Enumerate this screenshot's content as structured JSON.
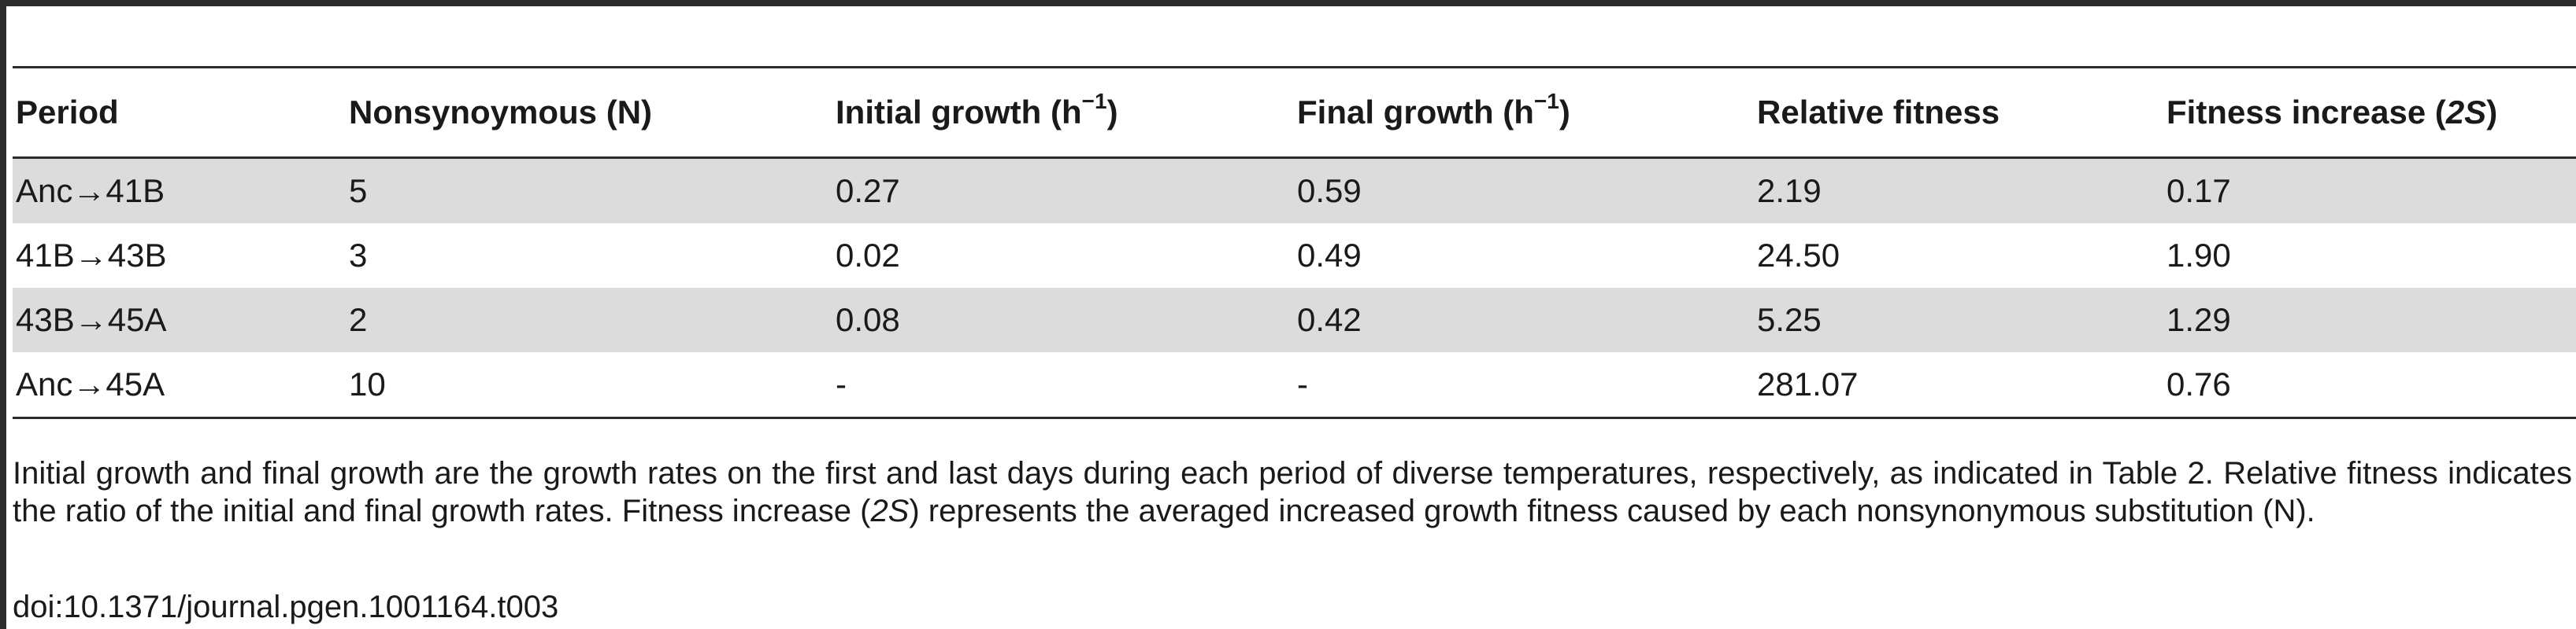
{
  "table": {
    "headers": [
      {
        "text": "Period"
      },
      {
        "text": "Nonsynoymous (N)"
      },
      {
        "pre": "Initial growth (h",
        "sup": "−1",
        "post": ")"
      },
      {
        "pre": "Final growth (h",
        "sup": "−1",
        "post": ")"
      },
      {
        "text": "Relative fitness"
      },
      {
        "pre": "Fitness increase (",
        "em": "2S",
        "post": ")"
      }
    ],
    "rows": [
      [
        "Anc→41B",
        "5",
        "0.27",
        "0.59",
        "2.19",
        "0.17"
      ],
      [
        "41B→43B",
        "3",
        "0.02",
        "0.49",
        "24.50",
        "1.90"
      ],
      [
        "43B→45A",
        "2",
        "0.08",
        "0.42",
        "5.25",
        "1.29"
      ],
      [
        "Anc→45A",
        "10",
        "-",
        "-",
        "281.07",
        "0.76"
      ]
    ]
  },
  "footnote": {
    "part1": "Initial growth and final growth are the growth rates on the first and last days during each period of diverse temperatures, respectively, as indicated in Table 2. Relative fitness indicates the ratio of the initial and final growth rates. Fitness increase (",
    "em": "2S",
    "part2": ") represents the averaged increased growth fitness caused by each nonsynonymous substitution (N)."
  },
  "doi": "doi:10.1371/journal.pgen.1001164.t003"
}
